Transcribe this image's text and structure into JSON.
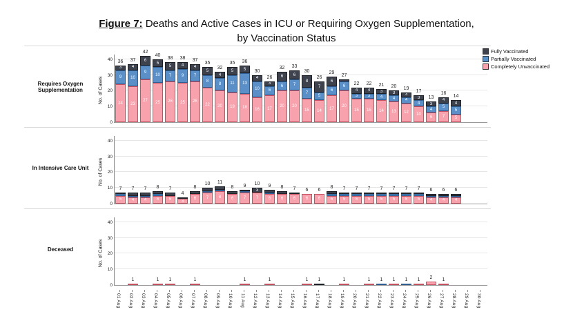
{
  "title": {
    "figure_label": "Figure 7:",
    "line1": "Deaths and Active Cases in ICU or Requiring Oxygen Supplementation,",
    "line2": "by Vaccination Status"
  },
  "legend": {
    "position": "top-right",
    "items": [
      {
        "label": "Fully Vaccinated",
        "color": "#3d424d"
      },
      {
        "label": "Partially Vaccinated",
        "color": "#5b8fc7"
      },
      {
        "label": "Completely Unvaccinated",
        "color": "#f7a2ac"
      }
    ]
  },
  "chart_data": {
    "type": "bar",
    "stacked": true,
    "grid": true,
    "ylabel": "No. of Cases",
    "yticks": [
      0,
      10,
      20,
      30,
      40
    ],
    "ylim": [
      0,
      43
    ],
    "legend_position": "top-right",
    "categories": [
      "01 Aug",
      "02 Aug",
      "03 Aug",
      "04 Aug",
      "05 Aug",
      "06 Aug",
      "07 Aug",
      "08 Aug",
      "09 Aug",
      "10 Aug",
      "11 Aug",
      "12 Aug",
      "13 Aug",
      "14 Aug",
      "15 Aug",
      "16 Aug",
      "17 Aug",
      "18 Aug",
      "19 Aug",
      "20 Aug",
      "21 Aug",
      "22 Aug",
      "23 Aug",
      "24 Aug",
      "25 Aug",
      "26 Aug",
      "27 Aug",
      "28 Aug",
      "29 Aug",
      "30 Aug"
    ],
    "series_meta": [
      {
        "name": "Fully Vaccinated",
        "slug": "fully-vaccinated",
        "color": "#3d424d",
        "border": "#1e2128"
      },
      {
        "name": "Partially Vaccinated",
        "slug": "partially-vaccinated",
        "color": "#5b8fc7",
        "border": "#2f5e93"
      },
      {
        "name": "Completely Unvaccinated",
        "slug": "completely-unvaccinated",
        "color": "#f7a2ac",
        "border": "#c4515f"
      }
    ],
    "panels": [
      {
        "label": "Requires Oxygen Supplementation",
        "totals": [
          36,
          37,
          42,
          40,
          38,
          38,
          37,
          35,
          32,
          35,
          36,
          30,
          26,
          32,
          33,
          30,
          26,
          29,
          27,
          22,
          22,
          21,
          20,
          19,
          17,
          13,
          16,
          14,
          0,
          0
        ],
        "series": [
          {
            "name": "Fully Vaccinated",
            "values": [
              3,
              4,
              6,
              5,
              5,
              4,
              4,
              5,
              4,
              5,
              5,
              4,
              3,
              6,
              6,
              8,
              7,
              6,
              1,
              4,
              4,
              3,
              3,
              3,
              3,
              3,
              4,
              4,
              0,
              0
            ]
          },
          {
            "name": "Partially Vaccinated",
            "values": [
              9,
              10,
              9,
              10,
              7,
              9,
              7,
              8,
              8,
              11,
              13,
              10,
              6,
              6,
              7,
              7,
              5,
              6,
              6,
              3,
              3,
              4,
              4,
              4,
              4,
              4,
              5,
              5,
              0,
              0
            ]
          },
          {
            "name": "Completely Unvaccinated",
            "values": [
              24,
              23,
              27,
              25,
              26,
              25,
              26,
              22,
              20,
              19,
              18,
              16,
              17,
              20,
              20,
              15,
              14,
              17,
              20,
              15,
              15,
              14,
              13,
              12,
              10,
              6,
              7,
              5,
              0,
              0
            ]
          }
        ]
      },
      {
        "label": "In Intensive Care Unit",
        "totals": [
          7,
          7,
          7,
          8,
          7,
          4,
          8,
          10,
          11,
          8,
          9,
          10,
          9,
          8,
          7,
          6,
          6,
          8,
          7,
          7,
          7,
          7,
          7,
          7,
          7,
          6,
          6,
          6,
          0,
          0
        ],
        "series": [
          {
            "name": "Fully Vaccinated",
            "values": [
              1,
              2,
              2,
              2,
              2,
              1,
              2,
              2,
              2,
              2,
              1,
              3,
              2,
              2,
              1,
              0,
              0,
              2,
              1,
              1,
              1,
              1,
              1,
              1,
              1,
              1,
              1,
              1,
              0,
              0
            ]
          },
          {
            "name": "Partially Vaccinated",
            "values": [
              1,
              1,
              1,
              1,
              0,
              0,
              0,
              1,
              1,
              0,
              1,
              0,
              1,
              0,
              0,
              0,
              0,
              1,
              1,
              1,
              1,
              1,
              1,
              1,
              1,
              1,
              1,
              1,
              0,
              0
            ]
          },
          {
            "name": "Completely Unvaccinated",
            "values": [
              5,
              4,
              4,
              5,
              5,
              3,
              6,
              7,
              8,
              6,
              7,
              7,
              6,
              6,
              6,
              6,
              6,
              5,
              5,
              5,
              5,
              5,
              5,
              5,
              5,
              4,
              4,
              4,
              0,
              0
            ]
          }
        ]
      },
      {
        "label": "Deceased",
        "totals": [
          0,
          1,
          0,
          1,
          1,
          0,
          1,
          0,
          0,
          0,
          1,
          0,
          1,
          0,
          0,
          1,
          1,
          0,
          1,
          0,
          1,
          1,
          1,
          1,
          1,
          2,
          1,
          0,
          0,
          0
        ],
        "series": [
          {
            "name": "Fully Vaccinated",
            "values": [
              0,
              0,
              0,
              0,
              0,
              0,
              0,
              0,
              0,
              0,
              0,
              0,
              0,
              0,
              0,
              0,
              1,
              0,
              0,
              0,
              0,
              0,
              0,
              0,
              0,
              0,
              0,
              0,
              0,
              0
            ]
          },
          {
            "name": "Partially Vaccinated",
            "values": [
              0,
              0,
              0,
              0,
              0,
              0,
              0,
              0,
              0,
              0,
              0,
              0,
              0,
              0,
              0,
              0,
              0,
              0,
              0,
              0,
              0,
              1,
              0,
              1,
              0,
              0,
              0,
              0,
              0,
              0
            ]
          },
          {
            "name": "Completely Unvaccinated",
            "values": [
              0,
              1,
              0,
              1,
              1,
              0,
              1,
              0,
              0,
              0,
              1,
              0,
              1,
              0,
              0,
              1,
              0,
              0,
              1,
              0,
              1,
              0,
              1,
              0,
              1,
              2,
              1,
              0,
              0,
              0
            ]
          }
        ]
      }
    ]
  }
}
